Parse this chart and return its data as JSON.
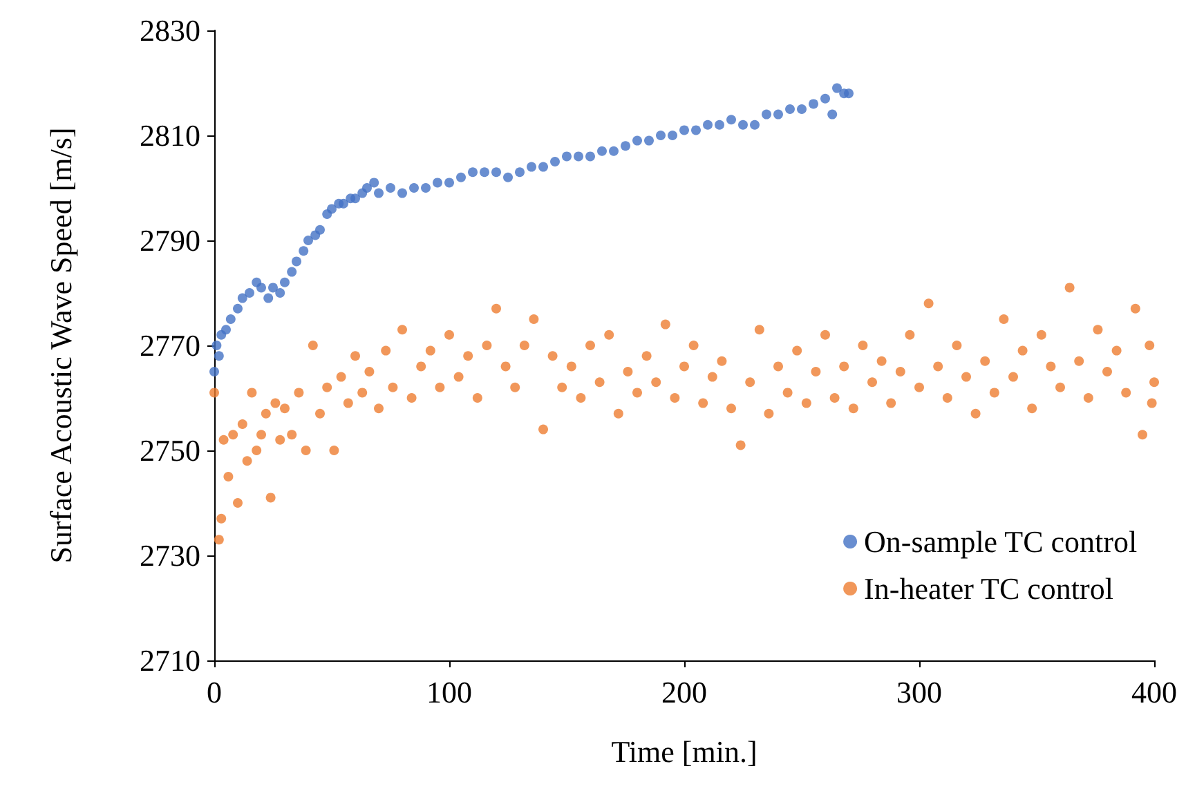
{
  "chart_data": {
    "type": "scatter",
    "xlabel": "Time [min.]",
    "ylabel": "Surface Acoustic Wave Speed [m/s]",
    "xlim": [
      0,
      400
    ],
    "xticks": [
      0,
      100,
      200,
      300,
      400
    ],
    "ylim": [
      2710,
      2830
    ],
    "yticks": [
      2710,
      2730,
      2750,
      2770,
      2790,
      2810,
      2830
    ],
    "grid": false,
    "legend": "bottom right",
    "marker": "circle",
    "series": [
      {
        "name": "On-sample TC control",
        "color": "#4472c4",
        "x": [
          0,
          1,
          2,
          3,
          5,
          7,
          10,
          12,
          15,
          18,
          20,
          23,
          25,
          28,
          30,
          33,
          35,
          38,
          40,
          43,
          45,
          48,
          50,
          53,
          55,
          58,
          60,
          63,
          65,
          68,
          70,
          75,
          80,
          85,
          90,
          95,
          100,
          105,
          110,
          115,
          120,
          125,
          130,
          135,
          140,
          145,
          150,
          155,
          160,
          165,
          170,
          175,
          180,
          185,
          190,
          195,
          200,
          205,
          210,
          215,
          220,
          225,
          230,
          235,
          240,
          245,
          250,
          255,
          260,
          263,
          265,
          268,
          270
        ],
        "values": [
          2765,
          2770,
          2768,
          2772,
          2773,
          2775,
          2777,
          2779,
          2780,
          2782,
          2781,
          2779,
          2781,
          2780,
          2782,
          2784,
          2786,
          2788,
          2790,
          2791,
          2792,
          2795,
          2796,
          2797,
          2797,
          2798,
          2798,
          2799,
          2800,
          2801,
          2799,
          2800,
          2799,
          2800,
          2800,
          2801,
          2801,
          2802,
          2803,
          2803,
          2803,
          2802,
          2803,
          2804,
          2804,
          2805,
          2806,
          2806,
          2806,
          2807,
          2807,
          2808,
          2809,
          2809,
          2810,
          2810,
          2811,
          2811,
          2812,
          2812,
          2813,
          2812,
          2812,
          2814,
          2814,
          2815,
          2815,
          2816,
          2817,
          2814,
          2819,
          2818,
          2818
        ]
      },
      {
        "name": "In-heater TC control",
        "color": "#ed7d31",
        "x": [
          0,
          2,
          3,
          4,
          6,
          8,
          10,
          12,
          14,
          16,
          18,
          20,
          22,
          24,
          26,
          28,
          30,
          33,
          36,
          39,
          42,
          45,
          48,
          51,
          54,
          57,
          60,
          63,
          66,
          70,
          73,
          76,
          80,
          84,
          88,
          92,
          96,
          100,
          104,
          108,
          112,
          116,
          120,
          124,
          128,
          132,
          136,
          140,
          144,
          148,
          152,
          156,
          160,
          164,
          168,
          172,
          176,
          180,
          184,
          188,
          192,
          196,
          200,
          204,
          208,
          212,
          216,
          220,
          224,
          228,
          232,
          236,
          240,
          244,
          248,
          252,
          256,
          260,
          264,
          268,
          272,
          276,
          280,
          284,
          288,
          292,
          296,
          300,
          304,
          308,
          312,
          316,
          320,
          324,
          328,
          332,
          336,
          340,
          344,
          348,
          352,
          356,
          360,
          364,
          368,
          372,
          376,
          380,
          384,
          388,
          392,
          395,
          398,
          399,
          400
        ],
        "values": [
          2761,
          2733,
          2737,
          2752,
          2745,
          2753,
          2740,
          2755,
          2748,
          2761,
          2750,
          2753,
          2757,
          2741,
          2759,
          2752,
          2758,
          2753,
          2761,
          2750,
          2770,
          2757,
          2762,
          2750,
          2764,
          2759,
          2768,
          2761,
          2765,
          2758,
          2769,
          2762,
          2773,
          2760,
          2766,
          2769,
          2762,
          2772,
          2764,
          2768,
          2760,
          2770,
          2777,
          2766,
          2762,
          2770,
          2775,
          2754,
          2768,
          2762,
          2766,
          2760,
          2770,
          2763,
          2772,
          2757,
          2765,
          2761,
          2768,
          2763,
          2774,
          2760,
          2766,
          2770,
          2759,
          2764,
          2767,
          2758,
          2751,
          2763,
          2773,
          2757,
          2766,
          2761,
          2769,
          2759,
          2765,
          2772,
          2760,
          2766,
          2758,
          2770,
          2763,
          2767,
          2759,
          2765,
          2772,
          2762,
          2778,
          2766,
          2760,
          2770,
          2764,
          2757,
          2767,
          2761,
          2775,
          2764,
          2769,
          2758,
          2772,
          2766,
          2762,
          2781,
          2767,
          2760,
          2773,
          2765,
          2769,
          2761,
          2777,
          2753,
          2770,
          2759,
          2763
        ]
      }
    ]
  }
}
